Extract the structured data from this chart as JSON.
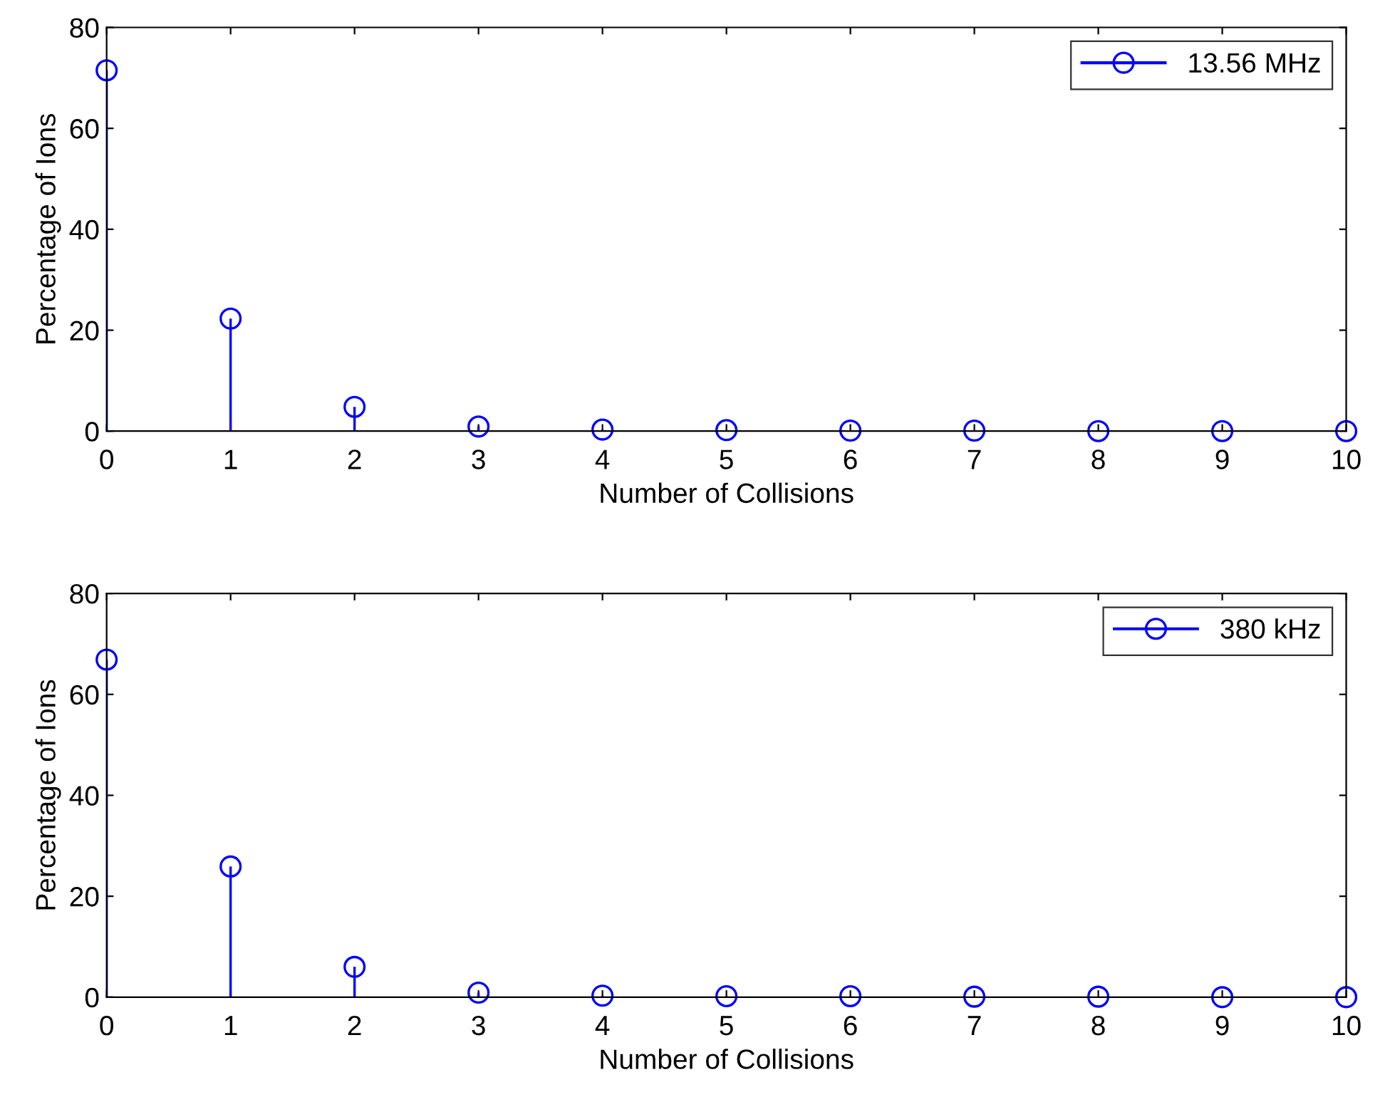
{
  "chart_data": [
    {
      "type": "lollipop",
      "xlabel": "Number of Collisions",
      "ylabel": "Percentage of Ions",
      "x": [
        0,
        1,
        2,
        3,
        4,
        5,
        6,
        7,
        8,
        9,
        10
      ],
      "xlim": [
        0,
        10
      ],
      "xticks": [
        0,
        1,
        2,
        3,
        4,
        5,
        6,
        7,
        8,
        9,
        10
      ],
      "ylim": [
        0,
        80
      ],
      "yticks": [
        0,
        20,
        40,
        60,
        80
      ],
      "marker": "circle",
      "grid": false,
      "legend": "top right",
      "series": [
        {
          "name": "13.56 MHz",
          "color": "#0000ff",
          "values": [
            71.5,
            22.3,
            4.8,
            0.9,
            0.3,
            0.2,
            0.1,
            0.1,
            0,
            0,
            0
          ]
        }
      ]
    },
    {
      "type": "lollipop",
      "xlabel": "Number of Collisions",
      "ylabel": "Percentage of Ions",
      "x": [
        0,
        1,
        2,
        3,
        4,
        5,
        6,
        7,
        8,
        9,
        10
      ],
      "xlim": [
        0,
        10
      ],
      "xticks": [
        0,
        1,
        2,
        3,
        4,
        5,
        6,
        7,
        8,
        9,
        10
      ],
      "ylim": [
        0,
        80
      ],
      "yticks": [
        0,
        20,
        40,
        60,
        80
      ],
      "marker": "circle",
      "grid": false,
      "legend": "top right",
      "series": [
        {
          "name": "380 kHz",
          "color": "#0000ff",
          "values": [
            66.9,
            25.9,
            6.0,
            0.9,
            0.3,
            0.2,
            0.2,
            0.1,
            0.1,
            0,
            0
          ]
        }
      ]
    }
  ]
}
